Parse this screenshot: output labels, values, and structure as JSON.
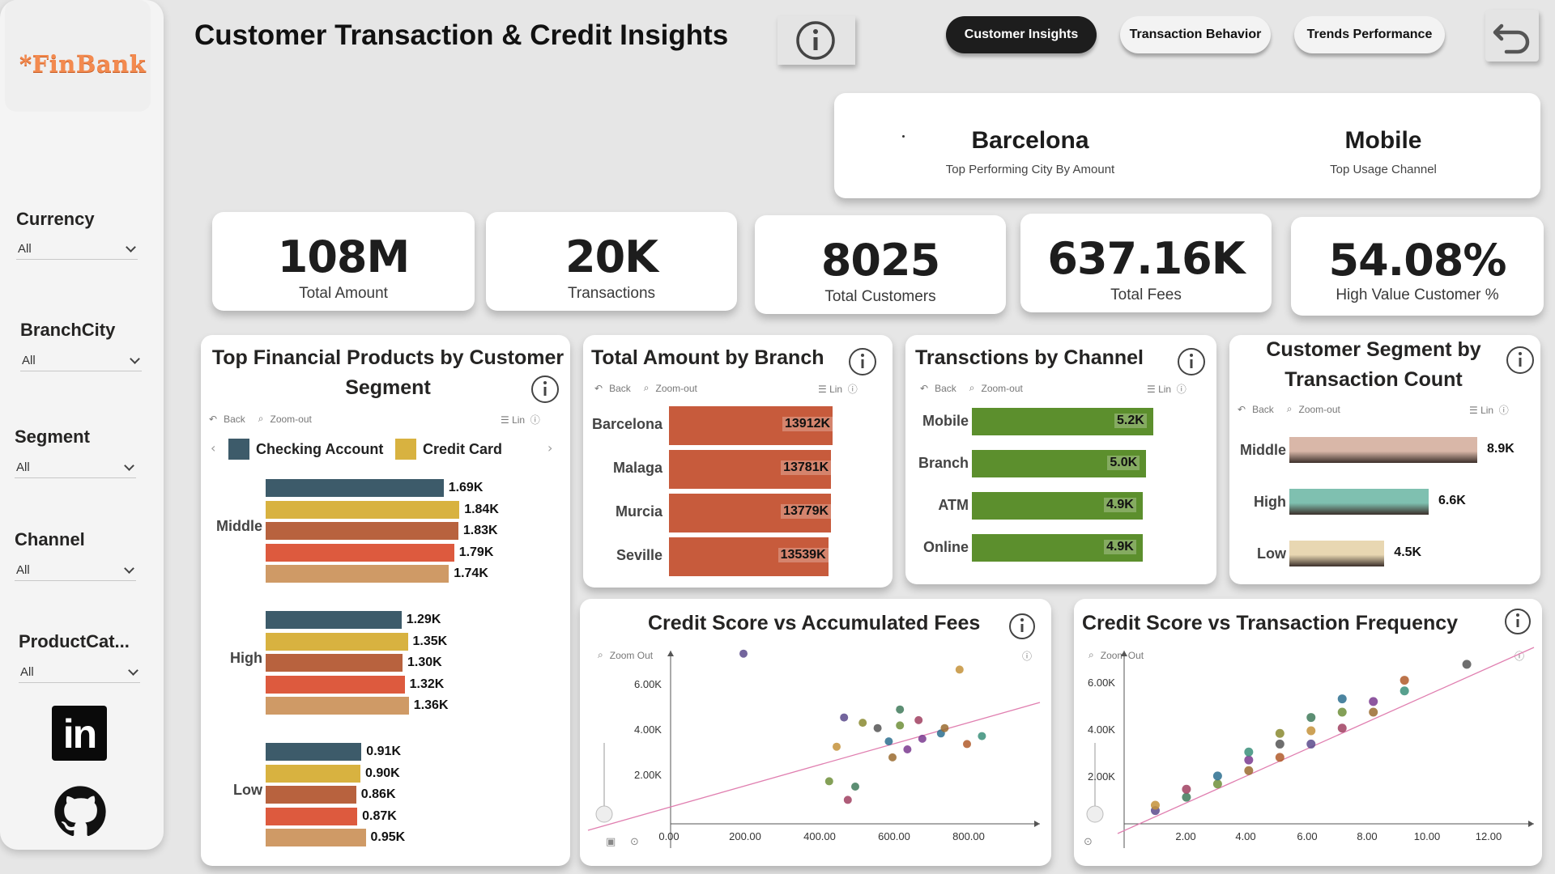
{
  "header": {
    "title": "Customer Transaction & Credit Insights",
    "nav": [
      "Customer Insights",
      "Transaction Behavior",
      "Trends Performance"
    ]
  },
  "sidebar": {
    "logo": "*FinBank",
    "slicers": [
      {
        "label": "Currency",
        "value": "All"
      },
      {
        "label": "BranchCity",
        "value": "All"
      },
      {
        "label": "Segment",
        "value": "All"
      },
      {
        "label": "Channel",
        "value": "All"
      },
      {
        "label": "ProductCat...",
        "value": "All"
      }
    ],
    "social_icons": [
      "linkedin-icon",
      "github-icon"
    ]
  },
  "top_performers": {
    "city": {
      "value": "Barcelona",
      "caption": "Top Performing City By Amount"
    },
    "channel": {
      "value": "Mobile",
      "caption": "Top Usage Channel"
    }
  },
  "kpis": [
    {
      "value": "108M",
      "label": "Total Amount"
    },
    {
      "value": "20K",
      "label": "Transactions"
    },
    {
      "value": "8025",
      "label": "Total Customers"
    },
    {
      "value": "637.16K",
      "label": "Total Fees"
    },
    {
      "value": "54.08%",
      "label": "High Value Customer %"
    }
  ],
  "toolbar": {
    "back": "Back",
    "zoom_out": "Zoom-out",
    "lin": "Lin",
    "zoom_out_alt": "Zoom Out"
  },
  "colors": {
    "checking": "#3d5b6a",
    "credit": "#d8b240",
    "series3": "#b8623e",
    "series4": "#dd5a3e",
    "series5": "#cf9a66",
    "branch": "#c75b3c",
    "channel": "#5c8f2d",
    "middle": "#d9b7a8",
    "high": "#7fc0b0",
    "low": "#e8d7b2"
  },
  "visuals": {
    "products": {
      "title_line1": "Top Financial Products by Customer",
      "title_line2": "Segment",
      "legend": [
        "Checking Account",
        "Credit Card"
      ]
    },
    "branch": {
      "title": "Total Amount by Branch"
    },
    "channel": {
      "title": "Transctions by Channel"
    },
    "segment": {
      "title_line1": "Customer Segment by",
      "title_line2": "Transaction Count"
    },
    "scatter_fees": {
      "title": "Credit Score vs Accumulated Fees"
    },
    "scatter_freq": {
      "title": "Credit Score vs Transaction Frequency"
    }
  },
  "chart_data": [
    {
      "type": "bar",
      "title": "Top Financial Products by Customer Segment",
      "categories": [
        "Middle",
        "High",
        "Low"
      ],
      "legend_visible": [
        "Checking Account",
        "Credit Card"
      ],
      "series": [
        {
          "name": "Checking Account",
          "values": [
            1.69,
            1.29,
            0.91
          ],
          "labels": [
            "1.69K",
            "1.29K",
            "0.91K"
          ]
        },
        {
          "name": "Credit Card",
          "values": [
            1.84,
            1.35,
            0.9
          ],
          "labels": [
            "1.84K",
            "1.35K",
            "0.90K"
          ]
        },
        {
          "values": [
            1.83,
            1.3,
            0.86
          ],
          "labels": [
            "1.83K",
            "1.30K",
            "0.86K"
          ]
        },
        {
          "values": [
            1.79,
            1.32,
            0.87
          ],
          "labels": [
            "1.79K",
            "1.32K",
            "0.87K"
          ]
        },
        {
          "values": [
            1.74,
            1.36,
            0.95
          ],
          "labels": [
            "1.74K",
            "1.36K",
            "0.95K"
          ]
        }
      ]
    },
    {
      "type": "bar",
      "title": "Total Amount by Branch",
      "categories": [
        "Barcelona",
        "Malaga",
        "Murcia",
        "Seville"
      ],
      "values": [
        13912,
        13781,
        13779,
        13539
      ],
      "labels": [
        "13912K",
        "13781K",
        "13779K",
        "13539K"
      ]
    },
    {
      "type": "bar",
      "title": "Transctions by Channel",
      "categories": [
        "Mobile",
        "Branch",
        "ATM",
        "Online"
      ],
      "values": [
        5.2,
        5.0,
        4.9,
        4.9
      ],
      "labels": [
        "5.2K",
        "5.0K",
        "4.9K",
        "4.9K"
      ]
    },
    {
      "type": "bar",
      "title": "Customer Segment by Transaction Count",
      "categories": [
        "Middle",
        "High",
        "Low"
      ],
      "values": [
        8.9,
        6.6,
        4.5
      ],
      "labels": [
        "8.9K",
        "6.6K",
        "4.5K"
      ]
    },
    {
      "type": "scatter",
      "title": "Credit Score vs Accumulated Fees",
      "x_ticks": [
        "0.00",
        "200.00",
        "400.00",
        "600.00",
        "800.00"
      ],
      "y_ticks": [
        "6.00K",
        "4.00K",
        "2.00K"
      ],
      "xlim": [
        0,
        1000
      ],
      "ylim": [
        0,
        7000
      ],
      "points": [
        [
          200,
          6400
        ],
        [
          780,
          5800
        ],
        [
          620,
          4300
        ],
        [
          670,
          3900
        ],
        [
          620,
          3700
        ],
        [
          730,
          3400
        ],
        [
          740,
          3600
        ],
        [
          680,
          3200
        ],
        [
          840,
          3300
        ],
        [
          800,
          3000
        ],
        [
          560,
          3600
        ],
        [
          520,
          3800
        ],
        [
          470,
          4000
        ],
        [
          450,
          2900
        ],
        [
          500,
          1400
        ],
        [
          480,
          900
        ],
        [
          430,
          1600
        ],
        [
          590,
          3100
        ],
        [
          600,
          2500
        ],
        [
          640,
          2800
        ]
      ]
    },
    {
      "type": "scatter",
      "title": "Credit Score vs Transaction Frequency",
      "x_ticks": [
        "2.00",
        "4.00",
        "6.00",
        "8.00",
        "10.00",
        "12.00"
      ],
      "y_ticks": [
        "6.00K",
        "4.00K",
        "2.00K"
      ],
      "xlim": [
        0,
        13
      ],
      "ylim": [
        0,
        7000
      ],
      "points": [
        [
          1,
          500
        ],
        [
          1,
          700
        ],
        [
          2,
          1000
        ],
        [
          2,
          1300
        ],
        [
          3,
          1500
        ],
        [
          3,
          1800
        ],
        [
          4,
          2000
        ],
        [
          4,
          2400
        ],
        [
          4,
          2700
        ],
        [
          5,
          2500
        ],
        [
          5,
          3000
        ],
        [
          5,
          3400
        ],
        [
          6,
          3000
        ],
        [
          6,
          3500
        ],
        [
          6,
          4000
        ],
        [
          7,
          3600
        ],
        [
          7,
          4200
        ],
        [
          7,
          4700
        ],
        [
          8,
          4200
        ],
        [
          8,
          4600
        ],
        [
          9,
          5000
        ],
        [
          9,
          5400
        ],
        [
          11,
          6000
        ]
      ]
    }
  ]
}
